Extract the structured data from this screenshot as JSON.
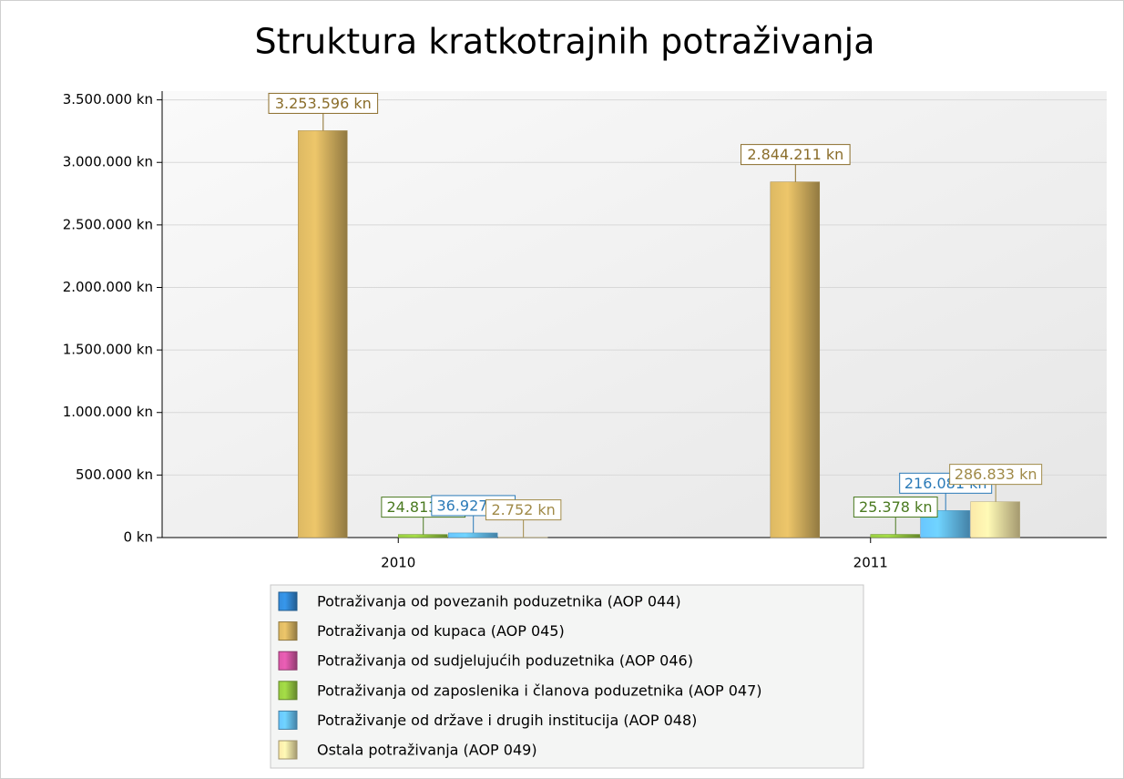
{
  "chart_data": {
    "type": "bar",
    "title": "Struktura kratkotrajnih potraživanja",
    "categories": [
      "2010",
      "2011"
    ],
    "series": [
      {
        "name": "Potraživanja od povezanih poduzetnika (AOP 044)",
        "color": "#2f80c8",
        "values": [
          null,
          null
        ],
        "value_labels": [
          null,
          null
        ]
      },
      {
        "name": "Potraživanja od kupaca (AOP 045)",
        "color": "#c9a85a",
        "label_color": "#8a6d2a",
        "values": [
          3253596,
          2844211
        ],
        "value_labels": [
          "3.253.596 kn",
          "2.844.211 kn"
        ]
      },
      {
        "name": "Potraživanja od sudjelujućih poduzetnika (AOP 046)",
        "color": "#c8509a",
        "values": [
          null,
          null
        ],
        "value_labels": [
          null,
          null
        ]
      },
      {
        "name": "Potraživanja od zaposlenika i članova poduzetnika (AOP 047)",
        "color": "#8cbc3c",
        "label_color": "#4a7a20",
        "values": [
          24813,
          25378
        ],
        "value_labels": [
          "24.813 kn",
          "25.378 kn"
        ]
      },
      {
        "name": "Potraživanje od države i drugih institucija (AOP 048)",
        "color": "#5fb4e8",
        "label_color": "#2a7ab8",
        "values": [
          36927,
          216081
        ],
        "value_labels": [
          "36.927 kn",
          "216.081 kn"
        ]
      },
      {
        "name": "Ostala potraživanja (AOP 049)",
        "color": "#e4d49a",
        "label_color": "#a08a48",
        "values": [
          2752,
          286833
        ],
        "value_labels": [
          "2.752 kn",
          "286.833 kn"
        ]
      }
    ],
    "ylim": [
      0,
      3570000
    ],
    "yticks": [
      {
        "value": 0,
        "label": "0 kn"
      },
      {
        "value": 500000,
        "label": "500.000 kn"
      },
      {
        "value": 1000000,
        "label": "1.000.000 kn"
      },
      {
        "value": 1500000,
        "label": "1.500.000 kn"
      },
      {
        "value": 2000000,
        "label": "2.000.000 kn"
      },
      {
        "value": 2500000,
        "label": "2.500.000 kn"
      },
      {
        "value": 3000000,
        "label": "3.000.000 kn"
      },
      {
        "value": 3500000,
        "label": "3.500.000 kn"
      }
    ],
    "grid": true,
    "legend": "bottom"
  }
}
